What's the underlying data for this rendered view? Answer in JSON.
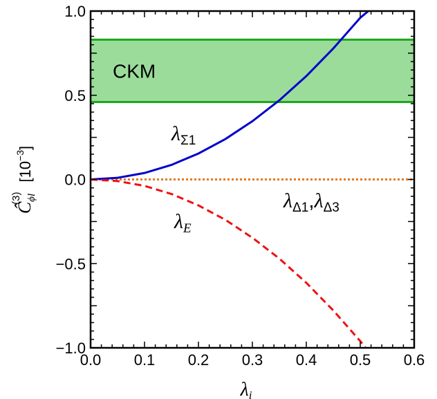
{
  "chart_data": {
    "type": "line",
    "xlabel_symbol": "λ",
    "xlabel_sub": "i",
    "ylabel": {
      "symbol": "Ĉ",
      "sub": "ϕl",
      "sup": "(3)",
      "unit_base": "[10",
      "unit_exp": "−3",
      "unit_close": "]"
    },
    "xlim": [
      0,
      0.6
    ],
    "ylim": [
      -1.0,
      1.0
    ],
    "xticks": [
      "0.0",
      "0.1",
      "0.2",
      "0.3",
      "0.4",
      "0.5",
      "0.6"
    ],
    "yticks": [
      "−1.0",
      "−0.5",
      "0.0",
      "0.5",
      "1.0"
    ],
    "band": {
      "label": "CKM",
      "low": 0.46,
      "high": 0.83,
      "fill": "#9bdc9b",
      "edge": "#1aa81a"
    },
    "series": [
      {
        "label_symbol": "λ",
        "label_sub": "Σ1",
        "style": "solid",
        "color": "#0000cc",
        "x": [
          0,
          0.05,
          0.1,
          0.15,
          0.2,
          0.25,
          0.3,
          0.35,
          0.4,
          0.45,
          0.5,
          0.515
        ],
        "y": [
          0,
          0.0096,
          0.0384,
          0.0864,
          0.154,
          0.24,
          0.346,
          0.47,
          0.614,
          0.778,
          0.96,
          1.0
        ]
      },
      {
        "label_symbol": "λ",
        "label_sub": "E",
        "style": "dashed",
        "color": "#ee1111",
        "x": [
          0,
          0.05,
          0.1,
          0.15,
          0.2,
          0.25,
          0.3,
          0.35,
          0.4,
          0.45,
          0.5,
          0.51
        ],
        "y": [
          0,
          -0.0096,
          -0.0384,
          -0.0864,
          -0.154,
          -0.24,
          -0.346,
          -0.47,
          -0.614,
          -0.778,
          -0.96,
          -1.0
        ]
      },
      {
        "label_symbol_1": "λ",
        "label_sub_1": "Δ1",
        "label_sep": ",",
        "label_symbol_2": "λ",
        "label_sub_2": "Δ3",
        "style": "dotted",
        "color": "#e07a1f",
        "x": [
          0,
          0.6
        ],
        "y": [
          0,
          0
        ]
      }
    ],
    "grid": false,
    "legend": "none"
  }
}
